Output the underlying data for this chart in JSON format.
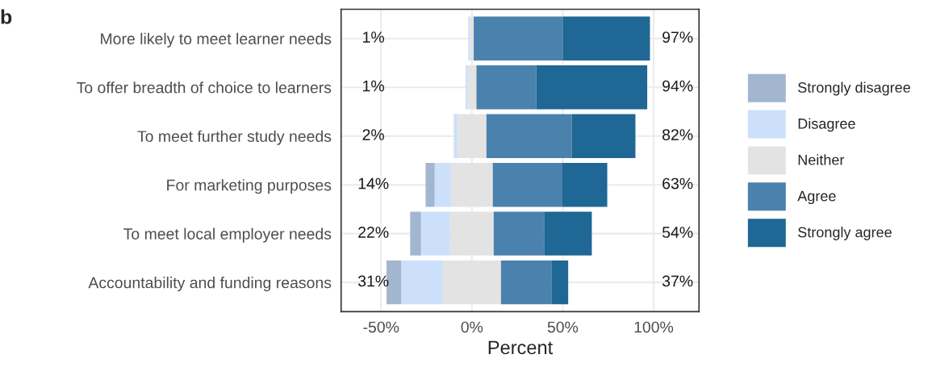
{
  "chart_data": {
    "type": "bar",
    "orientation": "horizontal",
    "stacked": true,
    "xlabel": "Percent",
    "categories": [
      "More likely to meet learner needs",
      "To offer breadth of choice to learners",
      "To meet further study needs",
      "For marketing purposes",
      "To meet local employer needs",
      "Accountability and funding reasons"
    ],
    "series": [
      {
        "color": "#e3e3e3",
        "values": [
          -1,
          -2.5,
          -8,
          -11.5,
          -12,
          -16
        ]
      },
      {
        "name": "Disagree",
        "color": "#cce0fb",
        "values": [
          -1,
          -1,
          -2,
          -9,
          -16,
          -23
        ]
      },
      {
        "name": "Strongly disagree",
        "color": "#a3b6cf",
        "values": [
          0,
          0,
          0,
          -5,
          -6,
          -8
        ]
      },
      {
        "name": "Neither",
        "color": "#e3e3e3",
        "values": [
          1,
          2.5,
          8,
          11.5,
          12,
          16
        ]
      },
      {
        "name": "Agree",
        "color": "#4a81ad",
        "values": [
          49,
          33,
          47,
          38,
          28,
          28
        ]
      },
      {
        "name": "Strongly agree",
        "color": "#1f6794",
        "values": [
          48,
          61,
          35,
          25,
          26,
          9
        ]
      }
    ],
    "xlim": [
      -72,
      125
    ],
    "xticks": [
      {
        "value": -50,
        "label": "-50%"
      },
      {
        "value": 0,
        "label": "0%"
      },
      {
        "value": 50,
        "label": "50%"
      },
      {
        "value": 100,
        "label": "100%"
      }
    ],
    "annotations": [
      "b",
      "1%",
      "1%",
      "2%",
      "14%",
      "22%",
      "31%",
      "97%",
      "94%",
      "82%",
      "63%",
      "54%",
      "37%"
    ],
    "grid": true,
    "legend": "right"
  }
}
